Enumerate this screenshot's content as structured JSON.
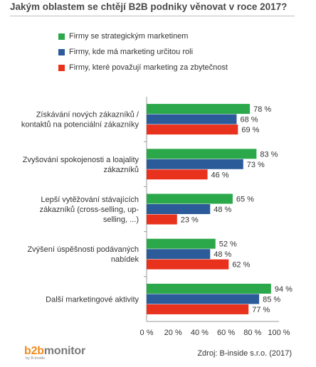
{
  "title": "Jakým oblastem se chtějí B2B podniky věnovat v roce 2017?",
  "source": "Zdroj: B-inside s.r.o. (2017)",
  "logo": {
    "text_b": "b2b",
    "text_rest": "monitor",
    "sub": "by B-inside"
  },
  "colors": {
    "green": "#2ba84a",
    "blue": "#2c5b9a",
    "red": "#e8321e"
  },
  "chart_data": {
    "type": "bar",
    "orientation": "horizontal",
    "categories": [
      [
        "Získávání nových zákazníků /",
        "kontaktů na potenciální zákazníky"
      ],
      [
        "Zvyšování spokojenosti a loajality",
        "zákazníků"
      ],
      [
        "Lepší vytěžování stávajících",
        "zákazníků (cross-selling, up-",
        "selling, ...)"
      ],
      [
        "Zvýšení úspěšnosti podávaných",
        "nabídek"
      ],
      [
        "Další marketingové aktivity"
      ]
    ],
    "series": [
      {
        "name": "Firmy se strategickým marketinem",
        "color": "#2ba84a",
        "values": [
          78,
          83,
          65,
          52,
          94
        ]
      },
      {
        "name": "Firmy, kde má marketing určitou roli",
        "color": "#2c5b9a",
        "values": [
          68,
          73,
          48,
          48,
          85
        ]
      },
      {
        "name": "Firmy, které považují marketing za zbytečnost",
        "color": "#e8321e",
        "values": [
          69,
          46,
          23,
          62,
          77
        ]
      }
    ],
    "xlim": [
      0,
      100
    ],
    "xticks": [
      "0 %",
      "20 %",
      "40 %",
      "60 %",
      "80 %",
      "100 %"
    ],
    "value_suffix": " %",
    "legend": "top-left",
    "grid": false
  }
}
